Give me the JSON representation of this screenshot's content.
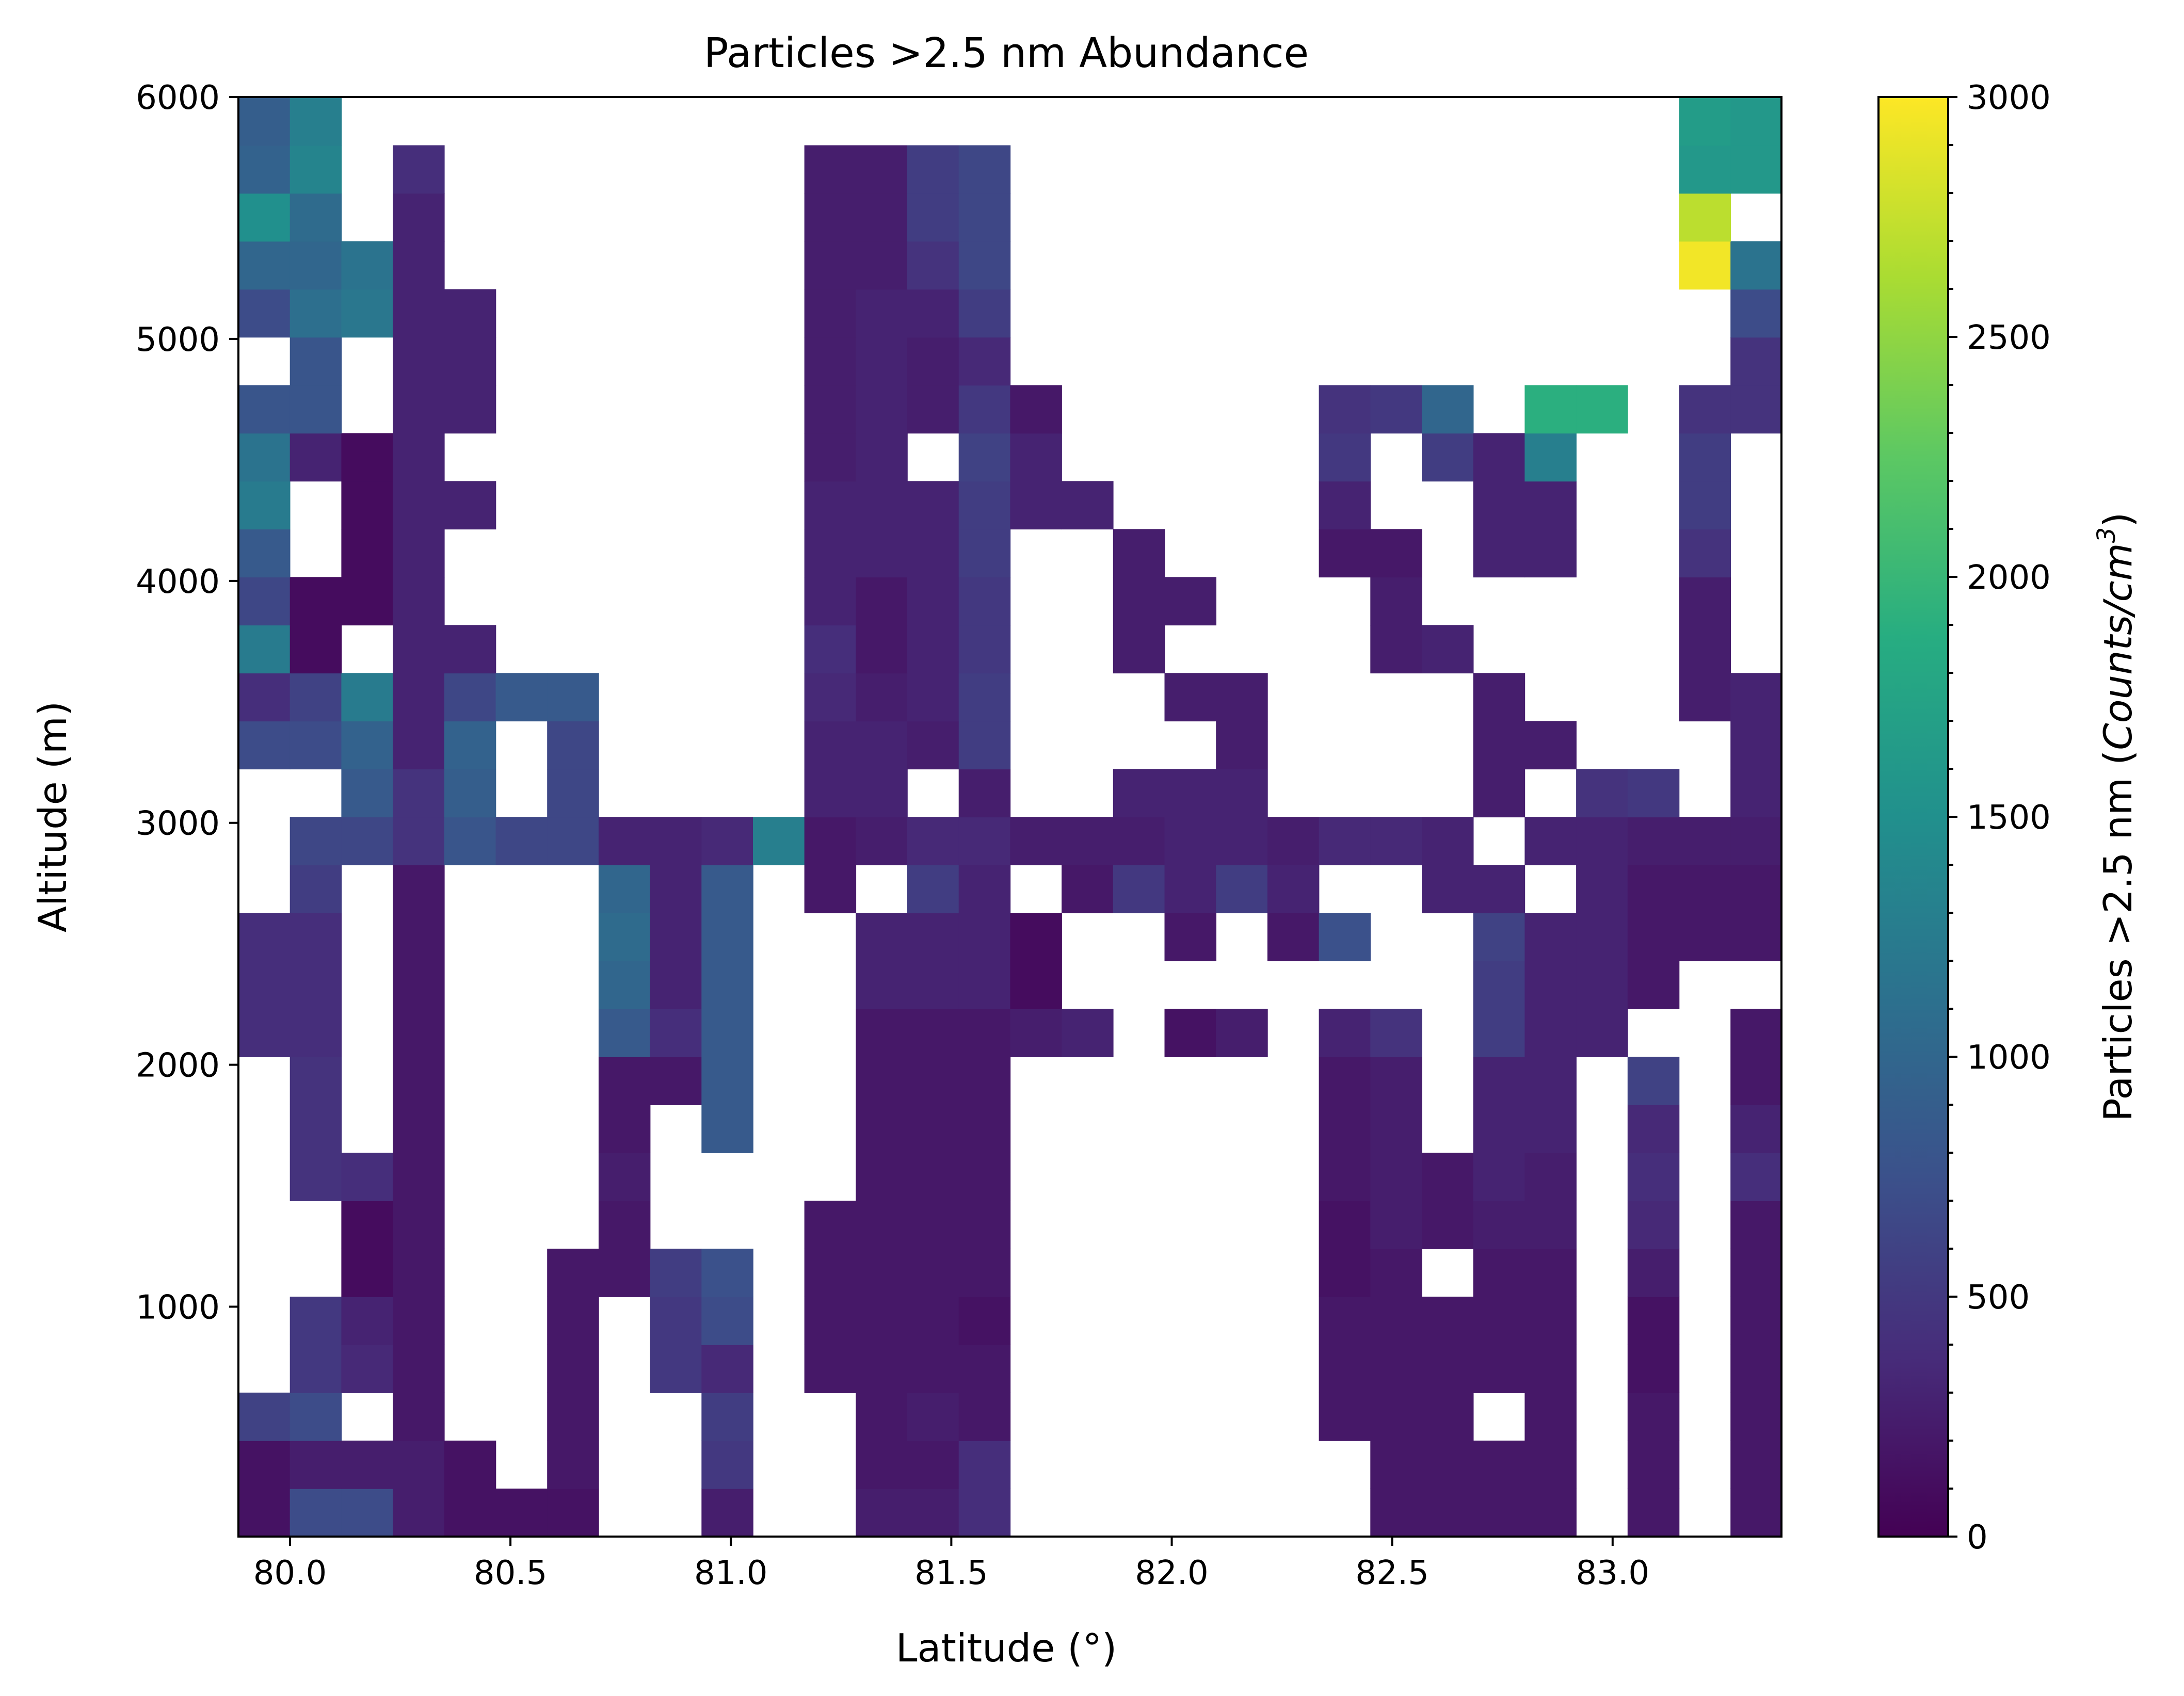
{
  "chart_data": {
    "type": "heatmap",
    "title": "Particles >2.5 nm Abundance",
    "xlabel": "Latitude (°)",
    "ylabel": "Altitude (m)",
    "colorbar_label": "Particles >2.5 nm (Counts/cm³)",
    "colorbar_label_parts": [
      "Particles >2.5 nm (",
      "Counts/cm",
      "3",
      ")"
    ],
    "colormap": "viridis",
    "colorbar_range": [
      0,
      3000
    ],
    "xlim": [
      79.883,
      83.383
    ],
    "ylim": [
      50,
      6000
    ],
    "x_ticks": [
      80.0,
      80.5,
      81.0,
      81.5,
      82.0,
      82.5,
      83.0
    ],
    "x_tick_labels": [
      "80.0",
      "80.5",
      "81.0",
      "81.5",
      "82.0",
      "82.5",
      "83.0"
    ],
    "y_ticks": [
      1000,
      2000,
      3000,
      4000,
      5000,
      6000
    ],
    "y_tick_labels": [
      "1000",
      "2000",
      "3000",
      "4000",
      "5000",
      "6000"
    ],
    "colorbar_ticks": [
      0,
      500,
      1000,
      1500,
      2000,
      2500,
      3000
    ],
    "colorbar_tick_labels": [
      "0",
      "500",
      "1000",
      "1500",
      "2000",
      "2500",
      "3000"
    ],
    "x_bin_edges_start": 79.883,
    "x_bin_width": 0.1167,
    "y_bin_edges_start": 50,
    "y_bin_width": 198.3,
    "n_cols": 30,
    "n_rows": 30,
    "grid_note": "values[r][c] in Counts/cm3; r=0 is the lowest altitude bin, c=0 is the westernmost latitude bin; null = no data",
    "values": [
      [
        150,
        700,
        700,
        250,
        150,
        150,
        150,
        null,
        null,
        250,
        null,
        null,
        250,
        250,
        400,
        null,
        null,
        null,
        null,
        null,
        null,
        null,
        200,
        200,
        200,
        200,
        null,
        200,
        null,
        200
      ],
      [
        150,
        250,
        250,
        250,
        150,
        null,
        200,
        null,
        null,
        500,
        null,
        null,
        200,
        200,
        400,
        null,
        null,
        null,
        null,
        null,
        null,
        null,
        200,
        200,
        200,
        200,
        null,
        200,
        null,
        200
      ],
      [
        600,
        700,
        null,
        200,
        null,
        null,
        200,
        null,
        null,
        550,
        null,
        null,
        200,
        250,
        200,
        null,
        null,
        null,
        null,
        null,
        null,
        200,
        200,
        200,
        null,
        200,
        null,
        200,
        null,
        200
      ],
      [
        null,
        500,
        350,
        200,
        null,
        null,
        200,
        null,
        500,
        350,
        null,
        200,
        200,
        200,
        200,
        null,
        null,
        null,
        null,
        null,
        null,
        200,
        200,
        200,
        200,
        200,
        null,
        150,
        null,
        200
      ],
      [
        null,
        500,
        300,
        200,
        null,
        null,
        200,
        null,
        500,
        700,
        null,
        200,
        200,
        200,
        150,
        null,
        null,
        null,
        null,
        null,
        null,
        200,
        200,
        200,
        200,
        200,
        null,
        150,
        null,
        200
      ],
      [
        null,
        null,
        100,
        200,
        null,
        null,
        200,
        200,
        550,
        750,
        null,
        200,
        200,
        200,
        200,
        null,
        null,
        null,
        null,
        null,
        null,
        150,
        200,
        null,
        200,
        200,
        null,
        250,
        null,
        200
      ],
      [
        null,
        null,
        100,
        200,
        null,
        null,
        null,
        200,
        null,
        null,
        null,
        200,
        200,
        200,
        200,
        null,
        null,
        null,
        null,
        null,
        null,
        150,
        250,
        200,
        250,
        250,
        null,
        350,
        null,
        200
      ],
      [
        null,
        450,
        400,
        200,
        null,
        null,
        null,
        250,
        null,
        null,
        null,
        null,
        200,
        200,
        200,
        null,
        null,
        null,
        null,
        null,
        null,
        200,
        250,
        200,
        300,
        250,
        null,
        400,
        null,
        400
      ],
      [
        null,
        450,
        null,
        200,
        null,
        null,
        null,
        200,
        null,
        850,
        null,
        null,
        200,
        200,
        200,
        null,
        null,
        null,
        null,
        null,
        null,
        200,
        250,
        null,
        300,
        300,
        null,
        350,
        null,
        300
      ],
      [
        null,
        450,
        null,
        200,
        null,
        null,
        null,
        200,
        200,
        850,
        null,
        null,
        200,
        200,
        200,
        null,
        null,
        null,
        null,
        null,
        null,
        200,
        250,
        null,
        300,
        300,
        null,
        600,
        null,
        200
      ],
      [
        400,
        400,
        null,
        200,
        null,
        null,
        null,
        850,
        400,
        850,
        null,
        null,
        200,
        200,
        200,
        250,
        300,
        null,
        150,
        250,
        null,
        300,
        450,
        null,
        550,
        300,
        300,
        null,
        null,
        200
      ],
      [
        400,
        400,
        null,
        200,
        null,
        null,
        null,
        1000,
        300,
        850,
        null,
        null,
        300,
        300,
        300,
        100,
        null,
        null,
        null,
        null,
        null,
        null,
        null,
        null,
        550,
        300,
        300,
        200,
        null,
        null
      ],
      [
        400,
        400,
        null,
        200,
        null,
        null,
        null,
        1050,
        300,
        850,
        null,
        null,
        300,
        300,
        300,
        100,
        null,
        null,
        200,
        null,
        200,
        750,
        null,
        null,
        600,
        300,
        300,
        200,
        200,
        200
      ],
      [
        null,
        550,
        null,
        200,
        null,
        null,
        null,
        1000,
        300,
        850,
        null,
        200,
        null,
        550,
        300,
        null,
        200,
        500,
        300,
        550,
        300,
        null,
        null,
        300,
        300,
        null,
        300,
        200,
        200,
        200
      ],
      [
        null,
        650,
        650,
        450,
        800,
        650,
        650,
        300,
        300,
        350,
        1300,
        200,
        250,
        350,
        350,
        250,
        250,
        250,
        300,
        300,
        250,
        350,
        350,
        300,
        null,
        300,
        300,
        250,
        250,
        250
      ],
      [
        null,
        null,
        850,
        450,
        900,
        null,
        650,
        null,
        null,
        null,
        null,
        300,
        300,
        null,
        250,
        null,
        null,
        300,
        300,
        300,
        null,
        null,
        null,
        null,
        250,
        null,
        450,
        500,
        null,
        300
      ],
      [
        700,
        700,
        950,
        300,
        950,
        null,
        650,
        null,
        null,
        null,
        null,
        300,
        300,
        250,
        550,
        null,
        null,
        null,
        null,
        250,
        null,
        null,
        null,
        null,
        250,
        250,
        null,
        null,
        null,
        300
      ],
      [
        400,
        600,
        1250,
        300,
        650,
        850,
        850,
        null,
        null,
        null,
        null,
        350,
        250,
        300,
        550,
        null,
        null,
        null,
        250,
        250,
        null,
        null,
        null,
        null,
        250,
        null,
        null,
        null,
        250,
        300
      ],
      [
        1250,
        100,
        null,
        300,
        300,
        null,
        null,
        null,
        null,
        null,
        null,
        400,
        200,
        300,
        500,
        null,
        null,
        250,
        null,
        null,
        null,
        null,
        250,
        300,
        null,
        null,
        null,
        null,
        250,
        null
      ],
      [
        650,
        100,
        100,
        300,
        null,
        null,
        null,
        null,
        null,
        null,
        null,
        300,
        200,
        300,
        500,
        null,
        null,
        250,
        250,
        null,
        null,
        null,
        250,
        null,
        null,
        null,
        null,
        null,
        250,
        null
      ],
      [
        850,
        null,
        100,
        300,
        null,
        null,
        null,
        null,
        null,
        null,
        null,
        300,
        300,
        300,
        550,
        null,
        null,
        250,
        null,
        null,
        null,
        200,
        200,
        null,
        300,
        300,
        null,
        null,
        450,
        null
      ],
      [
        1250,
        null,
        100,
        300,
        300,
        null,
        null,
        null,
        null,
        null,
        null,
        300,
        300,
        300,
        550,
        300,
        300,
        null,
        null,
        null,
        null,
        300,
        null,
        null,
        300,
        300,
        null,
        null,
        550,
        null
      ],
      [
        1150,
        300,
        100,
        300,
        null,
        null,
        null,
        null,
        null,
        null,
        null,
        250,
        300,
        null,
        600,
        300,
        null,
        null,
        null,
        null,
        null,
        500,
        null,
        550,
        300,
        1300,
        null,
        null,
        550,
        null
      ],
      [
        800,
        800,
        null,
        300,
        300,
        null,
        null,
        null,
        null,
        null,
        null,
        250,
        300,
        250,
        500,
        200,
        null,
        null,
        null,
        null,
        null,
        450,
        500,
        1000,
        null,
        1900,
        1900,
        null,
        450,
        450
      ],
      [
        null,
        800,
        null,
        300,
        300,
        null,
        null,
        null,
        null,
        null,
        null,
        250,
        300,
        250,
        350,
        null,
        null,
        null,
        null,
        null,
        null,
        null,
        null,
        null,
        null,
        null,
        null,
        null,
        null,
        450
      ],
      [
        700,
        1100,
        1200,
        300,
        300,
        null,
        null,
        null,
        null,
        null,
        null,
        250,
        300,
        300,
        550,
        null,
        null,
        null,
        null,
        null,
        null,
        null,
        null,
        null,
        null,
        null,
        null,
        null,
        null,
        700
      ],
      [
        1000,
        1000,
        1150,
        300,
        null,
        null,
        null,
        null,
        null,
        null,
        null,
        250,
        250,
        450,
        650,
        null,
        null,
        null,
        null,
        null,
        null,
        null,
        null,
        null,
        null,
        null,
        null,
        null,
        2950,
        1150
      ],
      [
        1500,
        1050,
        null,
        300,
        null,
        null,
        null,
        null,
        null,
        null,
        null,
        250,
        250,
        550,
        650,
        null,
        null,
        null,
        null,
        null,
        null,
        null,
        null,
        null,
        null,
        null,
        null,
        null,
        2700,
        null
      ],
      [
        950,
        1350,
        null,
        400,
        null,
        null,
        null,
        null,
        null,
        null,
        null,
        250,
        250,
        550,
        650,
        null,
        null,
        null,
        null,
        null,
        null,
        null,
        null,
        null,
        null,
        null,
        null,
        null,
        1600,
        1600
      ],
      [
        900,
        1300,
        null,
        null,
        null,
        null,
        null,
        null,
        null,
        null,
        null,
        null,
        null,
        null,
        null,
        null,
        null,
        null,
        null,
        null,
        null,
        null,
        null,
        null,
        null,
        null,
        null,
        null,
        1650,
        1600
      ]
    ]
  }
}
